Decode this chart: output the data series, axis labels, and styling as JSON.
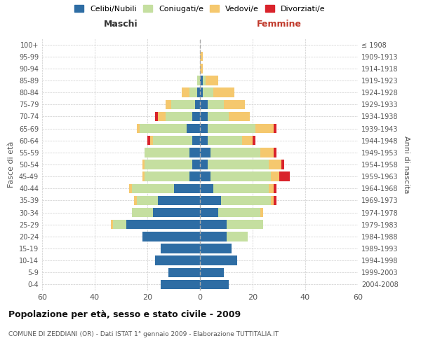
{
  "age_groups": [
    "0-4",
    "5-9",
    "10-14",
    "15-19",
    "20-24",
    "25-29",
    "30-34",
    "35-39",
    "40-44",
    "45-49",
    "50-54",
    "55-59",
    "60-64",
    "65-69",
    "70-74",
    "75-79",
    "80-84",
    "85-89",
    "90-94",
    "95-99",
    "100+"
  ],
  "birth_years": [
    "2004-2008",
    "1999-2003",
    "1994-1998",
    "1989-1993",
    "1984-1988",
    "1979-1983",
    "1974-1978",
    "1969-1973",
    "1964-1968",
    "1959-1963",
    "1954-1958",
    "1949-1953",
    "1944-1948",
    "1939-1943",
    "1934-1938",
    "1929-1933",
    "1924-1928",
    "1919-1923",
    "1914-1918",
    "1909-1913",
    "≤ 1908"
  ],
  "maschi": {
    "celibi": [
      15,
      12,
      17,
      15,
      22,
      28,
      18,
      16,
      10,
      4,
      3,
      4,
      3,
      5,
      3,
      2,
      1,
      0,
      0,
      0,
      0
    ],
    "coniugati": [
      0,
      0,
      0,
      0,
      0,
      5,
      8,
      8,
      16,
      17,
      18,
      17,
      15,
      18,
      10,
      9,
      3,
      1,
      0,
      0,
      0
    ],
    "vedovi": [
      0,
      0,
      0,
      0,
      0,
      1,
      0,
      1,
      1,
      1,
      1,
      0,
      1,
      1,
      3,
      2,
      3,
      0,
      0,
      0,
      0
    ],
    "divorziati": [
      0,
      0,
      0,
      0,
      0,
      0,
      0,
      0,
      0,
      0,
      0,
      0,
      1,
      0,
      1,
      0,
      0,
      0,
      0,
      0,
      0
    ]
  },
  "femmine": {
    "nubili": [
      11,
      9,
      14,
      12,
      10,
      10,
      7,
      8,
      5,
      4,
      3,
      4,
      3,
      3,
      3,
      3,
      1,
      1,
      0,
      0,
      0
    ],
    "coniugate": [
      0,
      0,
      0,
      0,
      8,
      14,
      16,
      19,
      21,
      23,
      23,
      19,
      13,
      18,
      8,
      6,
      4,
      1,
      0,
      0,
      0
    ],
    "vedove": [
      0,
      0,
      0,
      0,
      0,
      0,
      1,
      1,
      2,
      3,
      5,
      5,
      4,
      7,
      8,
      8,
      8,
      5,
      1,
      1,
      0
    ],
    "divorziate": [
      0,
      0,
      0,
      0,
      0,
      0,
      0,
      1,
      1,
      4,
      1,
      1,
      1,
      1,
      0,
      0,
      0,
      0,
      0,
      0,
      0
    ]
  },
  "colors": {
    "celibi": "#2e6da4",
    "coniugati": "#c5dfa0",
    "vedovi": "#f5c86e",
    "divorziati": "#d9232b"
  },
  "xlim": 60,
  "title": "Popolazione per età, sesso e stato civile - 2009",
  "subtitle": "COMUNE DI ZEDDIANI (OR) - Dati ISTAT 1° gennaio 2009 - Elaborazione TUTTITALIA.IT",
  "ylabel_left": "Fasce di età",
  "ylabel_right": "Anni di nascita",
  "xlabel_left": "Maschi",
  "xlabel_right": "Femmine"
}
